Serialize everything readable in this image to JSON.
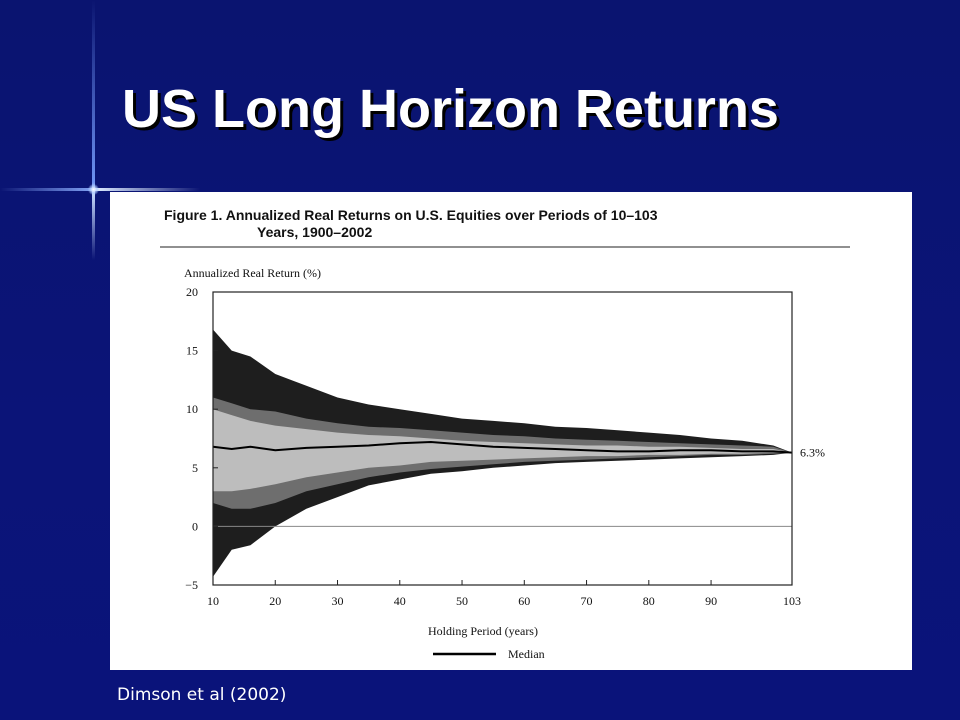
{
  "slide": {
    "title": "US Long Horizon Returns",
    "citation": "Dimson et al (2002)"
  },
  "colors": {
    "background": "#0b1478",
    "title": "#ffffff",
    "band_outer": "#1e1e1e",
    "band_mid": "#6e6e6e",
    "band_inner": "#bdbdbd",
    "median_line": "#000000"
  },
  "figure": {
    "caption_line1": "Figure 1.   Annualized Real Returns on U.S. Equities over Periods of 10–103",
    "caption_line2": "Years, 1900–2002"
  },
  "chart_data": {
    "type": "area",
    "title": "Annualized Real Returns on U.S. Equities over Periods of 10–103 Years, 1900–2002",
    "xlabel": "Holding Period (years)",
    "ylabel": "Annualized Real Return (%)",
    "xlim": [
      10,
      103
    ],
    "ylim": [
      -5,
      20
    ],
    "x_ticks": [
      10,
      20,
      30,
      40,
      50,
      60,
      70,
      80,
      90,
      103
    ],
    "y_ticks": [
      -5,
      0,
      5,
      10,
      15,
      20
    ],
    "legend": {
      "position": "bottom",
      "entries": [
        "Median"
      ]
    },
    "end_label": "6.3%",
    "reference_line": 0,
    "x": [
      10,
      13,
      16,
      20,
      25,
      30,
      35,
      40,
      45,
      50,
      55,
      60,
      65,
      70,
      75,
      80,
      85,
      90,
      95,
      100,
      103
    ],
    "series": [
      {
        "role": "max",
        "values": [
          16.8,
          15.0,
          14.5,
          13.0,
          12.0,
          11.0,
          10.4,
          10.0,
          9.6,
          9.2,
          9.0,
          8.8,
          8.5,
          8.4,
          8.2,
          8.0,
          7.8,
          7.5,
          7.3,
          6.9,
          6.3
        ]
      },
      {
        "role": "upper",
        "values": [
          11.0,
          10.5,
          10.0,
          9.8,
          9.2,
          8.8,
          8.5,
          8.4,
          8.2,
          8.0,
          7.8,
          7.7,
          7.5,
          7.4,
          7.3,
          7.2,
          7.1,
          7.0,
          6.9,
          6.8,
          6.3
        ]
      },
      {
        "role": "upper_inner",
        "values": [
          10.0,
          9.5,
          9.0,
          8.6,
          8.3,
          8.0,
          7.8,
          7.7,
          7.5,
          7.3,
          7.2,
          7.1,
          7.0,
          6.9,
          6.9,
          6.8,
          6.8,
          6.7,
          6.6,
          6.6,
          6.3
        ]
      },
      {
        "name": "Median",
        "role": "median",
        "values": [
          6.8,
          6.6,
          6.8,
          6.5,
          6.7,
          6.8,
          6.9,
          7.1,
          7.2,
          7.0,
          6.8,
          6.7,
          6.6,
          6.5,
          6.4,
          6.4,
          6.5,
          6.5,
          6.4,
          6.4,
          6.3
        ]
      },
      {
        "role": "lower_inner",
        "values": [
          3.0,
          3.0,
          3.2,
          3.6,
          4.2,
          4.6,
          5.0,
          5.2,
          5.5,
          5.6,
          5.7,
          5.8,
          5.9,
          6.0,
          6.0,
          6.1,
          6.1,
          6.2,
          6.2,
          6.3,
          6.3
        ]
      },
      {
        "role": "lower",
        "values": [
          2.0,
          1.5,
          1.5,
          2.0,
          3.0,
          3.6,
          4.2,
          4.6,
          4.9,
          5.1,
          5.3,
          5.5,
          5.6,
          5.7,
          5.8,
          5.9,
          6.0,
          6.1,
          6.1,
          6.2,
          6.3
        ]
      },
      {
        "role": "min",
        "values": [
          -4.3,
          -2.0,
          -1.6,
          0.0,
          1.5,
          2.5,
          3.5,
          4.0,
          4.5,
          4.7,
          5.0,
          5.2,
          5.4,
          5.5,
          5.6,
          5.7,
          5.8,
          5.9,
          6.0,
          6.1,
          6.3
        ]
      }
    ]
  }
}
